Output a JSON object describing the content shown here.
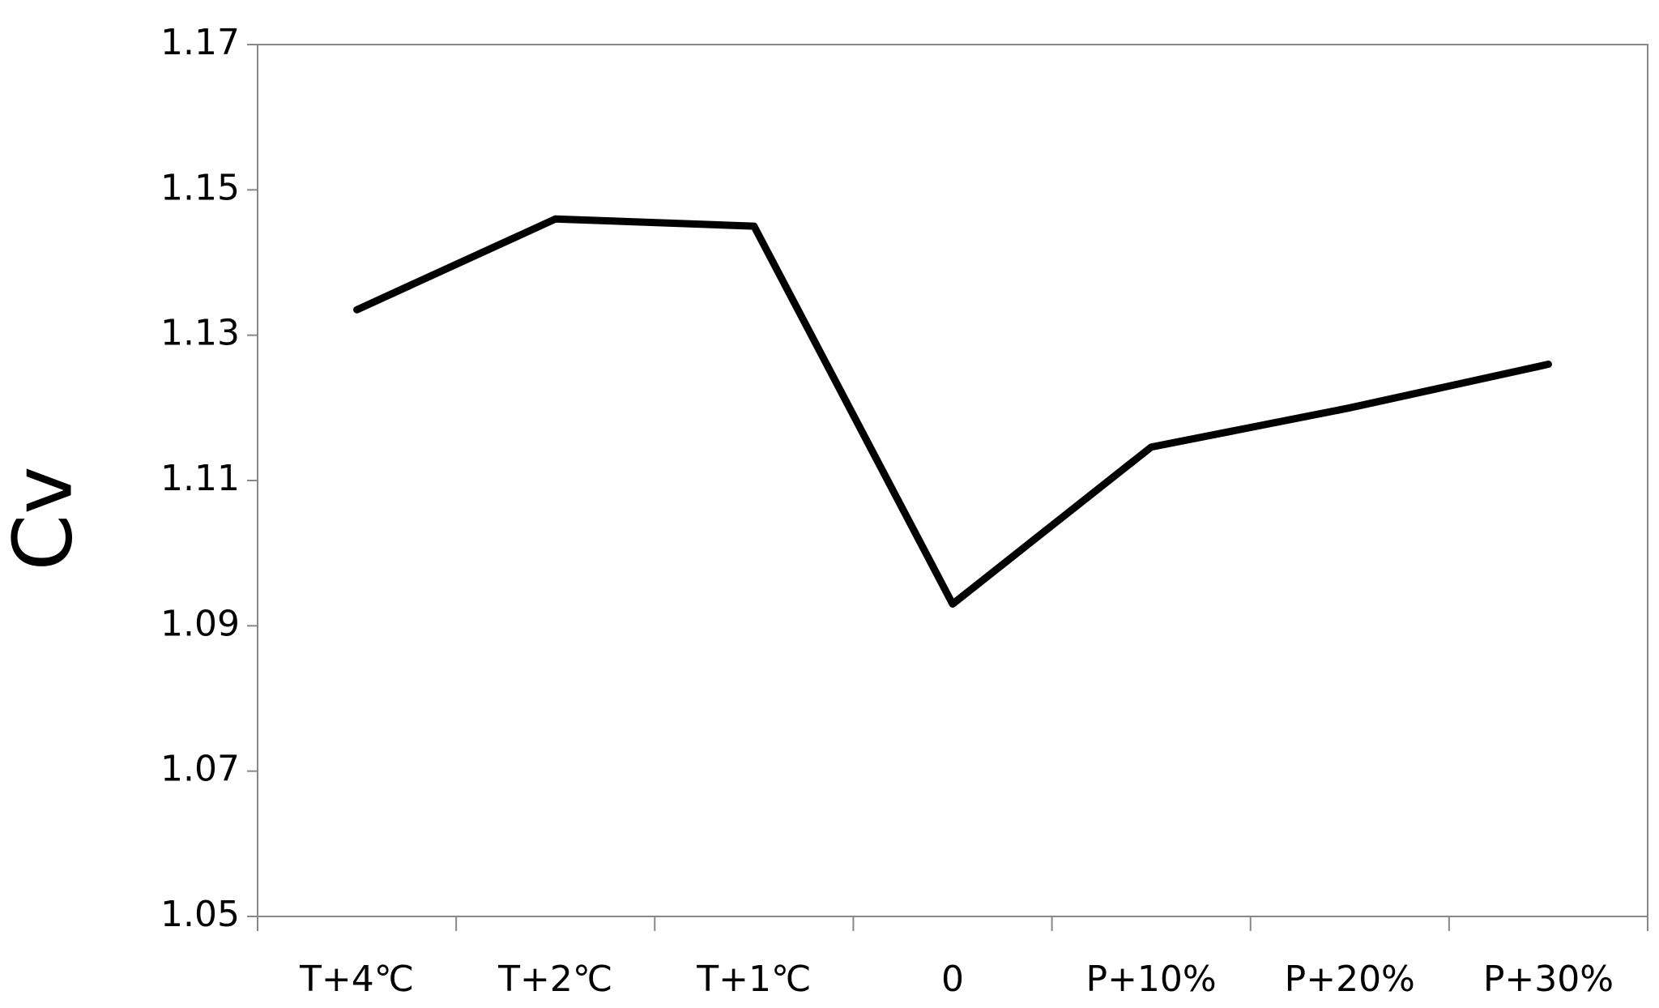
{
  "chart_data": {
    "type": "line",
    "y_label": "Cv",
    "categories": [
      "T+4℃",
      "T+2℃",
      "T+1℃",
      "0",
      "P+10%",
      "P+20%",
      "P+30%"
    ],
    "series": [
      {
        "name": "Cv",
        "color": "#000000",
        "values": [
          1.1335,
          1.146,
          1.145,
          1.093,
          1.1146,
          1.12,
          1.126
        ]
      }
    ],
    "ylim": [
      1.05,
      1.17
    ],
    "yticks": [
      1.05,
      1.07,
      1.09,
      1.11,
      1.13,
      1.15,
      1.17
    ],
    "grid": false
  }
}
